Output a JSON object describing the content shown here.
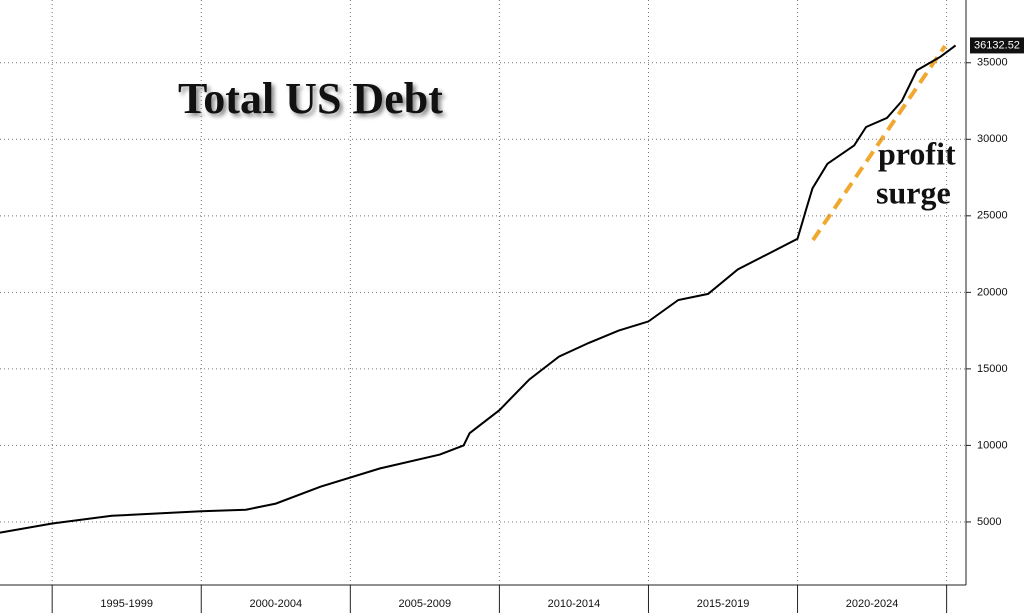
{
  "chart_data": {
    "type": "line",
    "title": "Total US Debt",
    "annotation": [
      "profit",
      "surge"
    ],
    "x": [
      1993.25,
      1995,
      1997,
      2000,
      2001.5,
      2002.5,
      2004,
      2006,
      2008,
      2008.8,
      2009,
      2010,
      2011,
      2012,
      2013,
      2014,
      2015,
      2016,
      2017,
      2018,
      2019,
      2020,
      2020.3,
      2020.5,
      2021,
      2021.9,
      2022.3,
      2023,
      2023.5,
      2024,
      2024.8,
      2025.3
    ],
    "values": [
      4300,
      4900,
      5400,
      5700,
      5800,
      6200,
      7300,
      8500,
      9400,
      10000,
      10800,
      12300,
      14300,
      15800,
      16700,
      17500,
      18100,
      19500,
      19900,
      21500,
      22500,
      23500,
      25500,
      26800,
      28400,
      29600,
      30800,
      31400,
      32500,
      34500,
      35400,
      36132.52
    ],
    "color": "#000000",
    "xlim": [
      1993.25,
      2025.65
    ],
    "ylim": [
      880,
      39100
    ],
    "xgrid": [
      1995,
      2000,
      2005,
      2010,
      2015,
      2020,
      2025
    ],
    "xticks": [
      {
        "value": 1997.5,
        "label": "1995-1999"
      },
      {
        "value": 2002.5,
        "label": "2000-2004"
      },
      {
        "value": 2007.5,
        "label": "2005-2009"
      },
      {
        "value": 2012.5,
        "label": "2010-2014"
      },
      {
        "value": 2017.5,
        "label": "2015-2019"
      },
      {
        "value": 2022.5,
        "label": "2020-2024"
      }
    ],
    "yticks": [
      5000,
      10000,
      15000,
      20000,
      25000,
      30000,
      35000
    ],
    "grid": true
  }
}
